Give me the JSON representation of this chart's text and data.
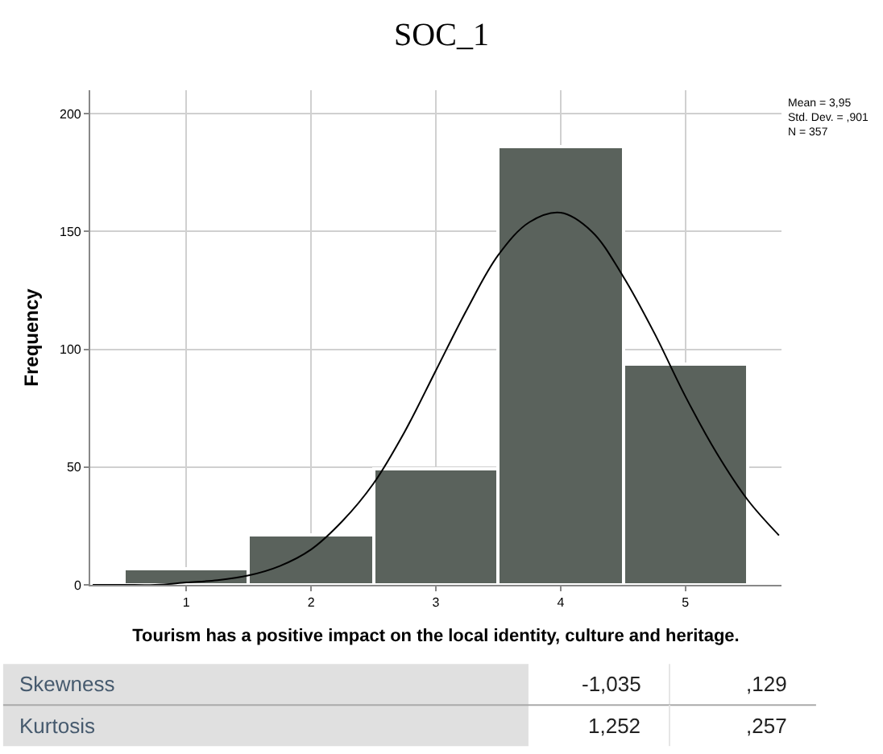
{
  "chart_data": {
    "type": "histogram",
    "title": "SOC_1",
    "xlabel": "Tourism has a positive impact on the local identity, culture and heritage.",
    "ylabel": "Frequency",
    "bins": [
      0.5,
      1.5,
      2.5,
      3.5,
      4.5,
      5.5
    ],
    "values": [
      7,
      21,
      49,
      186,
      94
    ],
    "color": "#5a625c",
    "series": [
      {
        "type": "line",
        "color": "#000000",
        "x": [
          0.25,
          0.5,
          0.75,
          1,
          1.25,
          1.5,
          1.75,
          2,
          2.25,
          2.5,
          2.75,
          3,
          3.25,
          3.5,
          3.75,
          4,
          4.25,
          4.5,
          4.75,
          5,
          5.25,
          5.5,
          5.75
        ],
        "values": [
          0,
          0,
          0,
          1,
          2,
          4,
          8,
          15,
          27,
          43,
          65,
          91,
          117,
          140,
          154,
          158,
          150,
          131,
          107,
          80,
          56,
          36,
          21
        ]
      }
    ],
    "xlim": [
      0.23,
      5.77
    ],
    "xticks": [
      1,
      2,
      3,
      4,
      5
    ],
    "ylim": [
      0,
      210
    ],
    "yticks": [
      0,
      50,
      100,
      150,
      200
    ],
    "grid": true,
    "annotations": [
      "Mean = 3,95\nStd. Dev. = ,901\nN = 357",
      "Skewness",
      "-1,035",
      ",129",
      "Kurtosis",
      "1,252",
      ",257"
    ]
  }
}
